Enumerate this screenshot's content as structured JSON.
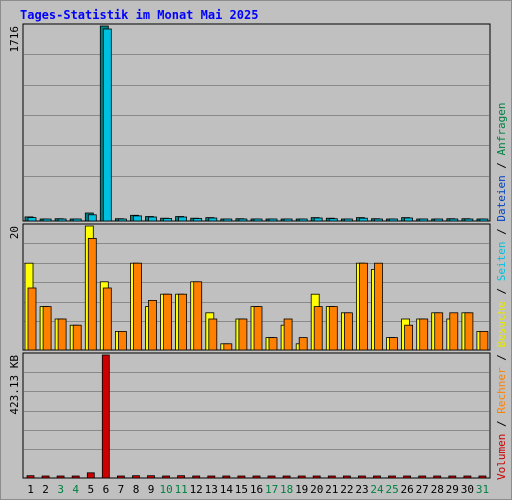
{
  "chart_data": {
    "type": "bar",
    "title": "Tages-Statistik im Monat Mai 2025",
    "days": [
      "1",
      "2",
      "3",
      "4",
      "5",
      "6",
      "7",
      "8",
      "9",
      "10",
      "11",
      "12",
      "13",
      "14",
      "15",
      "16",
      "17",
      "18",
      "19",
      "20",
      "21",
      "22",
      "23",
      "24",
      "25",
      "26",
      "27",
      "28",
      "29",
      "30",
      "31"
    ],
    "weekend_days": [
      "3",
      "4",
      "10",
      "11",
      "17",
      "18",
      "24",
      "25",
      "31"
    ],
    "legend": [
      {
        "text": "Volumen",
        "color": "#cc0000"
      },
      {
        "text": "Rechner",
        "color": "#ff8000"
      },
      {
        "text": "Besuche",
        "color": "#e6e600"
      },
      {
        "text": "Seiten",
        "color": "#00c0e0"
      },
      {
        "text": "Dateien",
        "color": "#0040c0"
      },
      {
        "text": "Anfragen",
        "color": "#008040"
      }
    ],
    "legend_separator": " / ",
    "panels": [
      {
        "ylabel": "1716",
        "ymax": 1716,
        "series": [
          {
            "name": "Anfragen",
            "color": "#008080",
            "values": [
              36,
              12,
              20,
              18,
              70,
              1716,
              20,
              50,
              40,
              25,
              40,
              25,
              30,
              10,
              20,
              15,
              10,
              8,
              8,
              30,
              25,
              15,
              30,
              20,
              10,
              30,
              10,
              10,
              20,
              20,
              10
            ]
          },
          {
            "name": "Seiten",
            "color": "#00c0e0",
            "values": [
              30,
              10,
              18,
              16,
              55,
              1690,
              18,
              45,
              35,
              22,
              35,
              22,
              26,
              8,
              18,
              12,
              8,
              6,
              6,
              26,
              20,
              12,
              25,
              16,
              8,
              26,
              8,
              8,
              16,
              16,
              8
            ]
          }
        ]
      },
      {
        "ylabel": "20",
        "ymax": 20,
        "series": [
          {
            "name": "Besuche",
            "color": "#ffff00",
            "values": [
              14,
              7,
              5,
              4,
              20,
              11,
              3,
              14,
              7,
              9,
              9,
              11,
              6,
              1,
              5,
              7,
              2,
              4,
              1,
              9,
              7,
              6,
              14,
              13,
              2,
              5,
              5,
              6,
              5,
              6,
              3
            ]
          },
          {
            "name": "Rechner",
            "color": "#ff8000",
            "values": [
              10,
              7,
              5,
              4,
              18,
              10,
              3,
              14,
              8,
              9,
              9,
              11,
              5,
              1,
              5,
              7,
              2,
              5,
              2,
              7,
              7,
              6,
              14,
              14,
              2,
              4,
              5,
              6,
              6,
              6,
              3
            ]
          }
        ]
      },
      {
        "ylabel": "423.13 KB",
        "ymax": 423.13,
        "series": [
          {
            "name": "Volumen",
            "color": "#cc0000",
            "values": [
              8,
              3,
              3,
              3,
              18,
              423.13,
              3,
              8,
              8,
              7,
              8,
              7,
              5,
              3,
              6,
              3,
              3,
              3,
              3,
              5,
              6,
              5,
              6,
              5,
              3,
              6,
              3,
              3,
              5,
              3,
              3
            ]
          }
        ]
      }
    ]
  }
}
